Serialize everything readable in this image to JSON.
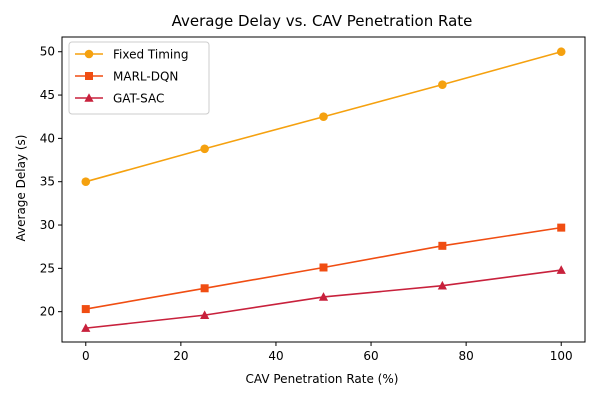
{
  "chart_data": {
    "type": "line",
    "title": "Average Delay vs. CAV Penetration Rate",
    "xlabel": "CAV Penetration Rate (%)",
    "ylabel": "Average Delay (s)",
    "x": [
      0,
      25,
      50,
      75,
      100
    ],
    "xlim": [
      -5,
      105
    ],
    "ylim": [
      16.5,
      51.7
    ],
    "xticks": [
      0,
      20,
      40,
      60,
      80,
      100
    ],
    "yticks": [
      20,
      25,
      30,
      35,
      40,
      45,
      50
    ],
    "grid": false,
    "legend_position": "top-left",
    "series": [
      {
        "name": "Fixed Timing",
        "color": "#f5a10f",
        "marker": "circle",
        "values": [
          35.0,
          38.8,
          42.5,
          46.2,
          50.0
        ]
      },
      {
        "name": "MARL-DQN",
        "color": "#f04d12",
        "marker": "square",
        "values": [
          20.3,
          22.7,
          25.1,
          27.6,
          29.7
        ]
      },
      {
        "name": "GAT-SAC",
        "color": "#c8213c",
        "marker": "triangle",
        "values": [
          18.1,
          19.6,
          21.7,
          23.0,
          24.8
        ]
      }
    ]
  }
}
